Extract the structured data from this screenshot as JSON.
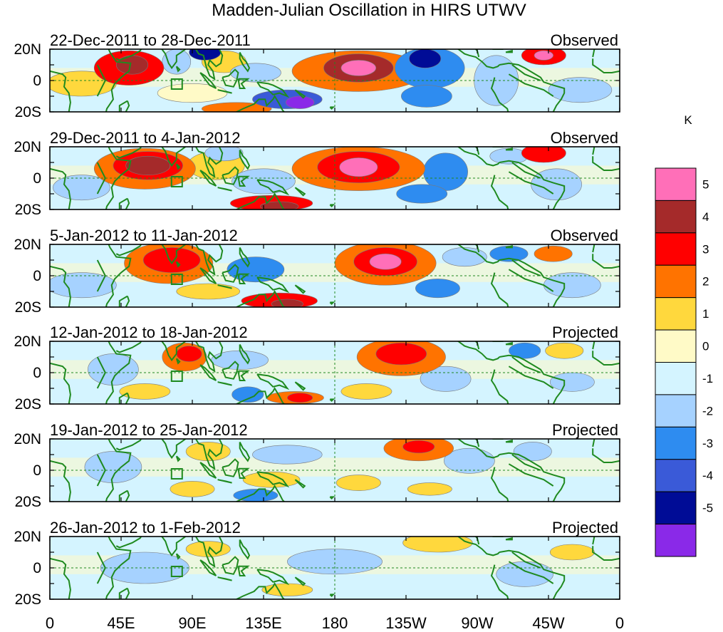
{
  "title": "Madden-Julian Oscillation in HIRS UTWV",
  "panels": [
    {
      "date_range": "22-Dec-2011 to 28-Dec-2011",
      "status": "Observed",
      "blobs": [
        {
          "lon": 50,
          "lat": 8,
          "rlon": 22,
          "rlat": 11,
          "value": 3.4
        },
        {
          "lon": 52,
          "lat": 10,
          "rlon": 10,
          "rlat": 6,
          "value": 4.2
        },
        {
          "lon": 80,
          "lat": 12,
          "rlon": 9,
          "rlat": 8,
          "value": -2
        },
        {
          "lon": 98,
          "lat": 18,
          "rlon": 10,
          "rlat": 5,
          "value": -4.6
        },
        {
          "lon": 110,
          "lat": 12,
          "rlon": 14,
          "rlat": 7,
          "value": 1.3
        },
        {
          "lon": 130,
          "lat": 5,
          "rlon": 16,
          "rlat": 6,
          "value": -1.4
        },
        {
          "lon": 118,
          "lat": -18,
          "rlon": 22,
          "rlat": 4,
          "value": 2.4
        },
        {
          "lon": 150,
          "lat": -12,
          "rlon": 22,
          "rlat": 6,
          "value": -3.4
        },
        {
          "lon": 158,
          "lat": -14,
          "rlon": 9,
          "rlat": 4,
          "value": -5.2
        },
        {
          "lon": 195,
          "lat": 6,
          "rlon": 42,
          "rlat": 13,
          "value": 2.4
        },
        {
          "lon": 195,
          "lat": 8,
          "rlon": 22,
          "rlat": 9,
          "value": 4.2
        },
        {
          "lon": 195,
          "lat": 8,
          "rlon": 11,
          "rlat": 5,
          "value": 5.3
        },
        {
          "lon": 240,
          "lat": 8,
          "rlon": 22,
          "rlat": 13,
          "value": -2.4
        },
        {
          "lon": 237,
          "lat": 14,
          "rlon": 10,
          "rlat": 6,
          "value": -4.8
        },
        {
          "lon": 238,
          "lat": -10,
          "rlon": 16,
          "rlat": 7,
          "value": -2.6
        },
        {
          "lon": 282,
          "lat": 0,
          "rlon": 14,
          "rlat": 16,
          "value": -1.3
        },
        {
          "lon": 312,
          "lat": 16,
          "rlon": 14,
          "rlat": 6,
          "value": 3.2
        },
        {
          "lon": 312,
          "lat": 16,
          "rlon": 6,
          "rlat": 3,
          "value": 5.2
        },
        {
          "lon": 20,
          "lat": -2,
          "rlon": 22,
          "rlat": 8,
          "value": 1.1
        },
        {
          "lon": 90,
          "lat": -8,
          "rlon": 22,
          "rlat": 6,
          "value": 0.8
        },
        {
          "lon": 335,
          "lat": -6,
          "rlon": 20,
          "rlat": 8,
          "value": -1.2
        }
      ]
    },
    {
      "date_range": "29-Dec-2011 to 4-Jan-2012",
      "status": "Observed",
      "blobs": [
        {
          "lon": 60,
          "lat": 6,
          "rlon": 32,
          "rlat": 13,
          "value": 2.6
        },
        {
          "lon": 62,
          "lat": 8,
          "rlon": 22,
          "rlat": 9,
          "value": 3.4
        },
        {
          "lon": 62,
          "lat": 8,
          "rlon": 14,
          "rlat": 6,
          "value": 4.3
        },
        {
          "lon": 105,
          "lat": 8,
          "rlon": 18,
          "rlat": 9,
          "value": 1.3
        },
        {
          "lon": 135,
          "lat": -2,
          "rlon": 20,
          "rlat": 8,
          "value": -1.6
        },
        {
          "lon": 140,
          "lat": -16,
          "rlon": 26,
          "rlat": 5,
          "value": 3.1
        },
        {
          "lon": 145,
          "lat": -18,
          "rlon": 12,
          "rlat": 3,
          "value": 4.3
        },
        {
          "lon": 195,
          "lat": 6,
          "rlon": 42,
          "rlat": 14,
          "value": 2.3
        },
        {
          "lon": 195,
          "lat": 7,
          "rlon": 26,
          "rlat": 10,
          "value": 3.4
        },
        {
          "lon": 195,
          "lat": 7,
          "rlon": 12,
          "rlat": 6,
          "value": 5.3
        },
        {
          "lon": 235,
          "lat": -10,
          "rlon": 16,
          "rlat": 6,
          "value": -2.4
        },
        {
          "lon": 250,
          "lat": 4,
          "rlon": 14,
          "rlat": 12,
          "value": -2.2
        },
        {
          "lon": 290,
          "lat": 14,
          "rlon": 12,
          "rlat": 5,
          "value": -1.4
        },
        {
          "lon": 312,
          "lat": 16,
          "rlon": 14,
          "rlat": 6,
          "value": 3.3
        },
        {
          "lon": 320,
          "lat": -4,
          "rlon": 16,
          "rlat": 10,
          "value": -1.2
        },
        {
          "lon": 20,
          "lat": -6,
          "rlon": 18,
          "rlat": 8,
          "value": -1.1
        },
        {
          "lon": 110,
          "lat": 16,
          "rlon": 12,
          "rlat": 5,
          "value": -1.3
        }
      ]
    },
    {
      "date_range": "5-Jan-2012 to 11-Jan-2012",
      "status": "Observed",
      "blobs": [
        {
          "lon": 75,
          "lat": 8,
          "rlon": 28,
          "rlat": 13,
          "value": 2.4
        },
        {
          "lon": 77,
          "lat": 10,
          "rlon": 18,
          "rlat": 8,
          "value": 3.3
        },
        {
          "lon": 130,
          "lat": 4,
          "rlon": 18,
          "rlat": 8,
          "value": -2.2
        },
        {
          "lon": 145,
          "lat": -16,
          "rlon": 24,
          "rlat": 5,
          "value": 3.2
        },
        {
          "lon": 150,
          "lat": -18,
          "rlon": 10,
          "rlat": 3,
          "value": 4.3
        },
        {
          "lon": 212,
          "lat": 8,
          "rlon": 32,
          "rlat": 14,
          "value": 2.3
        },
        {
          "lon": 212,
          "lat": 9,
          "rlon": 20,
          "rlat": 9,
          "value": 3.4
        },
        {
          "lon": 212,
          "lat": 9,
          "rlon": 10,
          "rlat": 5,
          "value": 5.3
        },
        {
          "lon": 245,
          "lat": -8,
          "rlon": 14,
          "rlat": 6,
          "value": -2.4
        },
        {
          "lon": 262,
          "lat": 12,
          "rlon": 14,
          "rlat": 6,
          "value": -1.3
        },
        {
          "lon": 290,
          "lat": 14,
          "rlon": 12,
          "rlat": 5,
          "value": -2.4
        },
        {
          "lon": 318,
          "lat": 14,
          "rlon": 12,
          "rlat": 5,
          "value": 2.6
        },
        {
          "lon": 330,
          "lat": -6,
          "rlon": 18,
          "rlat": 8,
          "value": -1.3
        },
        {
          "lon": 20,
          "lat": -6,
          "rlon": 22,
          "rlat": 8,
          "value": -1.1
        },
        {
          "lon": 100,
          "lat": -10,
          "rlon": 20,
          "rlat": 5,
          "value": 1.2
        }
      ]
    },
    {
      "date_range": "12-Jan-2012 to 18-Jan-2012",
      "status": "Projected",
      "blobs": [
        {
          "lon": 85,
          "lat": 10,
          "rlon": 14,
          "rlat": 9,
          "value": 2.2
        },
        {
          "lon": 88,
          "lat": 12,
          "rlon": 8,
          "rlat": 5,
          "value": 3.3
        },
        {
          "lon": 40,
          "lat": 2,
          "rlon": 16,
          "rlat": 10,
          "value": -1.4
        },
        {
          "lon": 120,
          "lat": 8,
          "rlon": 18,
          "rlat": 6,
          "value": -1.3
        },
        {
          "lon": 125,
          "lat": -14,
          "rlon": 10,
          "rlat": 5,
          "value": -2.4
        },
        {
          "lon": 155,
          "lat": -16,
          "rlon": 18,
          "rlat": 4,
          "value": 2.4
        },
        {
          "lon": 158,
          "lat": -16,
          "rlon": 8,
          "rlat": 3,
          "value": 3.2
        },
        {
          "lon": 222,
          "lat": 10,
          "rlon": 28,
          "rlat": 12,
          "value": 2.3
        },
        {
          "lon": 222,
          "lat": 12,
          "rlon": 16,
          "rlat": 7,
          "value": 3.4
        },
        {
          "lon": 200,
          "lat": -12,
          "rlon": 16,
          "rlat": 5,
          "value": 1.3
        },
        {
          "lon": 250,
          "lat": -4,
          "rlon": 16,
          "rlat": 8,
          "value": -1.2
        },
        {
          "lon": 300,
          "lat": 14,
          "rlon": 10,
          "rlat": 5,
          "value": -2.3
        },
        {
          "lon": 325,
          "lat": 14,
          "rlon": 12,
          "rlat": 5,
          "value": 1.2
        },
        {
          "lon": 330,
          "lat": -6,
          "rlon": 14,
          "rlat": 6,
          "value": -1.2
        },
        {
          "lon": 60,
          "lat": -12,
          "rlon": 16,
          "rlat": 5,
          "value": 1.2
        }
      ]
    },
    {
      "date_range": "19-Jan-2012 to 25-Jan-2012",
      "status": "Projected",
      "blobs": [
        {
          "lon": 100,
          "lat": 12,
          "rlon": 14,
          "rlat": 6,
          "value": 1.2
        },
        {
          "lon": 40,
          "lat": 2,
          "rlon": 18,
          "rlat": 10,
          "value": -1.3
        },
        {
          "lon": 150,
          "lat": 10,
          "rlon": 22,
          "rlat": 6,
          "value": -1.3
        },
        {
          "lon": 130,
          "lat": -16,
          "rlon": 14,
          "rlat": 4,
          "value": -2.4
        },
        {
          "lon": 140,
          "lat": -6,
          "rlon": 18,
          "rlat": 5,
          "value": 1.2
        },
        {
          "lon": 233,
          "lat": 14,
          "rlon": 22,
          "rlat": 8,
          "value": 2.2
        },
        {
          "lon": 233,
          "lat": 15,
          "rlon": 10,
          "rlat": 4,
          "value": 3.3
        },
        {
          "lon": 195,
          "lat": -8,
          "rlon": 14,
          "rlat": 5,
          "value": 1.2
        },
        {
          "lon": 265,
          "lat": 6,
          "rlon": 16,
          "rlat": 8,
          "value": -1.2
        },
        {
          "lon": 305,
          "lat": 12,
          "rlon": 12,
          "rlat": 6,
          "value": -1.3
        },
        {
          "lon": 90,
          "lat": -12,
          "rlon": 14,
          "rlat": 5,
          "value": 1.2
        },
        {
          "lon": 240,
          "lat": -12,
          "rlon": 14,
          "rlat": 4,
          "value": 1.1
        }
      ]
    },
    {
      "date_range": "26-Jan-2012 to 1-Feb-2012",
      "status": "Projected",
      "blobs": [
        {
          "lon": 60,
          "lat": 0,
          "rlon": 28,
          "rlat": 10,
          "value": -1.2
        },
        {
          "lon": 180,
          "lat": 4,
          "rlon": 30,
          "rlat": 8,
          "value": -1.1
        },
        {
          "lon": 245,
          "lat": 16,
          "rlon": 22,
          "rlat": 6,
          "value": 1.3
        },
        {
          "lon": 100,
          "lat": 12,
          "rlon": 14,
          "rlat": 5,
          "value": 1.1
        },
        {
          "lon": 300,
          "lat": -4,
          "rlon": 18,
          "rlat": 8,
          "value": -1.2
        },
        {
          "lon": 330,
          "lat": 10,
          "rlon": 14,
          "rlat": 5,
          "value": 1.1
        },
        {
          "lon": 150,
          "lat": -14,
          "rlon": 16,
          "rlat": 4,
          "value": 1.1
        }
      ]
    }
  ],
  "lat_ticks": [
    "20N",
    "0",
    "20S"
  ],
  "lon_ticks": [
    "0",
    "45E",
    "90E",
    "135E",
    "180",
    "135W",
    "90W",
    "45W",
    "0"
  ],
  "colorbar": {
    "unit": "K",
    "labels": [
      "5",
      "4",
      "3",
      "2",
      "1",
      "0",
      "-1",
      "-2",
      "-3",
      "-4",
      "-5"
    ],
    "colors": [
      "#ff6fb8",
      "#a52a2a",
      "#ff0000",
      "#ff7300",
      "#ffd83d",
      "#fffac7",
      "#d4f4ff",
      "#a6d2ff",
      "#2e8cf0",
      "#3a5ad8",
      "#000c96",
      "#8a29e8"
    ]
  }
}
